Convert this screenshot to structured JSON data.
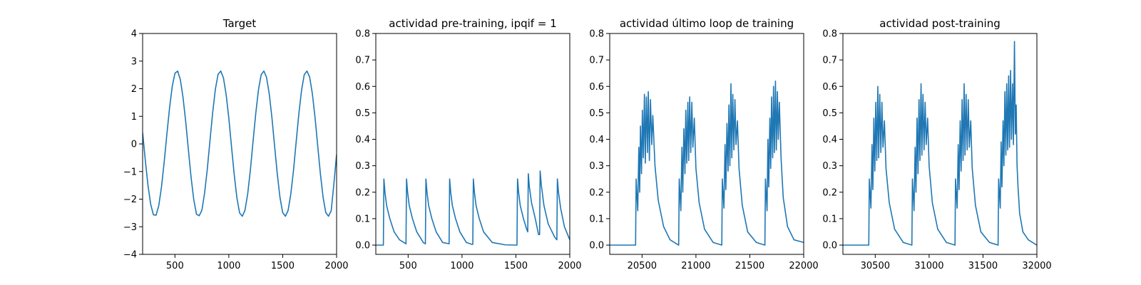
{
  "chart_data": [
    {
      "type": "line",
      "title": "Target",
      "xlabel": "",
      "ylabel": "",
      "xlim": [
        200,
        2000
      ],
      "ylim": [
        -4,
        4
      ],
      "xticks": [
        500,
        1000,
        1500,
        2000
      ],
      "yticks": [
        -4,
        -3,
        -2,
        -1,
        0,
        1,
        2,
        3,
        4
      ],
      "xtick_labels": [
        "500",
        "1000",
        "1500",
        "2000"
      ],
      "ytick_labels": [
        "−4",
        "−3",
        "−2",
        "−1",
        "0",
        "1",
        "2",
        "3",
        "4"
      ],
      "grid": false,
      "series": [
        {
          "x": [
            200,
            225,
            250,
            275,
            300,
            325,
            350,
            375,
            400,
            425,
            450,
            475,
            500,
            525,
            550,
            575,
            600,
            625,
            650,
            675,
            700,
            725,
            750,
            775,
            800,
            825,
            850,
            875,
            900,
            925,
            950,
            975,
            1000,
            1025,
            1050,
            1075,
            1100,
            1125,
            1150,
            1175,
            1200,
            1225,
            1250,
            1275,
            1300,
            1325,
            1350,
            1375,
            1400,
            1425,
            1450,
            1475,
            1500,
            1525,
            1550,
            1575,
            1600,
            1625,
            1650,
            1675,
            1700,
            1725,
            1750,
            1775,
            1800,
            1825,
            1850,
            1875,
            1900,
            1925,
            1950,
            1975,
            2000
          ],
          "y": [
            0.41,
            -0.6,
            -1.51,
            -2.19,
            -2.57,
            -2.58,
            -2.23,
            -1.56,
            -0.66,
            0.35,
            1.31,
            2.09,
            2.56,
            2.64,
            2.33,
            1.68,
            0.8,
            -0.22,
            -1.22,
            -2.03,
            -2.55,
            -2.6,
            -2.4,
            -1.78,
            -0.92,
            0.12,
            1.13,
            1.98,
            2.52,
            2.64,
            2.39,
            1.79,
            0.93,
            -0.11,
            -1.11,
            -1.96,
            -2.5,
            -2.62,
            -2.4,
            -1.81,
            -0.94,
            0.1,
            1.11,
            1.96,
            2.51,
            2.64,
            2.41,
            1.81,
            0.95,
            -0.09,
            -1.1,
            -1.95,
            -2.49,
            -2.62,
            -2.41,
            -1.82,
            -0.96,
            0.08,
            1.1,
            1.95,
            2.51,
            2.64,
            2.42,
            1.82,
            0.96,
            -0.08,
            -1.09,
            -1.94,
            -2.49,
            -2.62,
            -2.42,
            -1.44,
            -0.38
          ]
        }
      ]
    },
    {
      "type": "line",
      "title": "actividad pre-training, ipqif = 1",
      "xlabel": "",
      "ylabel": "",
      "xlim": [
        200,
        2000
      ],
      "ylim": [
        -0.035,
        0.8
      ],
      "xticks": [
        500,
        1000,
        1500,
        2000
      ],
      "yticks": [
        0.0,
        0.1,
        0.2,
        0.3,
        0.4,
        0.5,
        0.6,
        0.7,
        0.8
      ],
      "xtick_labels": [
        "500",
        "1000",
        "1500",
        "2000"
      ],
      "ytick_labels": [
        "0.0",
        "0.1",
        "0.2",
        "0.3",
        "0.4",
        "0.5",
        "0.6",
        "0.7",
        "0.8"
      ],
      "grid": false,
      "series": [
        {
          "x": [
            200,
            270,
            275,
            285,
            300,
            330,
            370,
            420,
            480,
            485,
            495,
            510,
            540,
            580,
            640,
            660,
            665,
            675,
            690,
            720,
            760,
            820,
            880,
            885,
            895,
            910,
            940,
            980,
            1040,
            1090,
            1100,
            1105,
            1115,
            1130,
            1160,
            1200,
            1280,
            1400,
            1510,
            1515,
            1525,
            1540,
            1570,
            1600,
            1610,
            1615,
            1625,
            1645,
            1680,
            1710,
            1720,
            1725,
            1735,
            1760,
            1800,
            1860,
            1880,
            1885,
            1895,
            1915,
            1950,
            2000
          ],
          "y": [
            0.0,
            0.0,
            0.25,
            0.2,
            0.15,
            0.1,
            0.05,
            0.02,
            0.005,
            0.25,
            0.2,
            0.15,
            0.1,
            0.05,
            0.01,
            0.005,
            0.25,
            0.2,
            0.15,
            0.1,
            0.05,
            0.01,
            0.005,
            0.25,
            0.2,
            0.15,
            0.1,
            0.05,
            0.01,
            0.003,
            0.003,
            0.25,
            0.2,
            0.15,
            0.1,
            0.05,
            0.01,
            0.001,
            0.0,
            0.25,
            0.2,
            0.15,
            0.1,
            0.06,
            0.05,
            0.27,
            0.22,
            0.16,
            0.1,
            0.04,
            0.04,
            0.28,
            0.23,
            0.15,
            0.08,
            0.03,
            0.02,
            0.25,
            0.2,
            0.14,
            0.07,
            0.02
          ]
        }
      ]
    },
    {
      "type": "line",
      "title": "actividad último loop de training",
      "xlabel": "",
      "ylabel": "",
      "xlim": [
        20200,
        22000
      ],
      "ylim": [
        -0.035,
        0.8
      ],
      "xticks": [
        20500,
        21000,
        21500,
        22000
      ],
      "yticks": [
        0.0,
        0.1,
        0.2,
        0.3,
        0.4,
        0.5,
        0.6,
        0.7,
        0.8
      ],
      "xtick_labels": [
        "20500",
        "21000",
        "21500",
        "22000"
      ],
      "ytick_labels": [
        "0.0",
        "0.1",
        "0.2",
        "0.3",
        "0.4",
        "0.5",
        "0.6",
        "0.7",
        "0.8"
      ],
      "grid": false,
      "series": [
        {
          "x": [
            20200,
            20440,
            20445,
            20460,
            20470,
            20478,
            20485,
            20495,
            20503,
            20512,
            20522,
            20530,
            20540,
            20550,
            20558,
            20568,
            20578,
            20590,
            20600,
            20620,
            20650,
            20700,
            20760,
            20840,
            20845,
            20860,
            20870,
            20878,
            20888,
            20898,
            20906,
            20915,
            20925,
            20933,
            20942,
            20952,
            20962,
            20972,
            20985,
            21000,
            21030,
            21080,
            21160,
            21240,
            21245,
            21260,
            21270,
            21278,
            21288,
            21298,
            21306,
            21315,
            21325,
            21333,
            21342,
            21352,
            21362,
            21372,
            21385,
            21400,
            21430,
            21480,
            21560,
            21640,
            21645,
            21660,
            21668,
            21676,
            21686,
            21694,
            21702,
            21712,
            21720,
            21728,
            21738,
            21746,
            21756,
            21764,
            21774,
            21790,
            21810,
            21850,
            21910,
            22000
          ],
          "y": [
            0.0,
            0.0,
            0.25,
            0.13,
            0.37,
            0.2,
            0.45,
            0.27,
            0.51,
            0.33,
            0.57,
            0.31,
            0.56,
            0.35,
            0.58,
            0.32,
            0.55,
            0.38,
            0.49,
            0.3,
            0.17,
            0.07,
            0.02,
            0.0,
            0.25,
            0.13,
            0.37,
            0.2,
            0.44,
            0.27,
            0.51,
            0.31,
            0.54,
            0.32,
            0.56,
            0.35,
            0.54,
            0.37,
            0.48,
            0.29,
            0.16,
            0.06,
            0.01,
            0.0,
            0.25,
            0.14,
            0.38,
            0.21,
            0.46,
            0.28,
            0.53,
            0.3,
            0.61,
            0.33,
            0.57,
            0.36,
            0.55,
            0.38,
            0.47,
            0.29,
            0.15,
            0.05,
            0.01,
            0.0,
            0.25,
            0.13,
            0.4,
            0.22,
            0.48,
            0.29,
            0.56,
            0.33,
            0.6,
            0.35,
            0.62,
            0.36,
            0.58,
            0.4,
            0.54,
            0.33,
            0.18,
            0.07,
            0.02,
            0.01
          ]
        }
      ]
    },
    {
      "type": "line",
      "title": "actividad post-training",
      "xlabel": "",
      "ylabel": "",
      "xlim": [
        30200,
        32000
      ],
      "ylim": [
        -0.035,
        0.8
      ],
      "xticks": [
        30500,
        31000,
        31500,
        32000
      ],
      "yticks": [
        0.0,
        0.1,
        0.2,
        0.3,
        0.4,
        0.5,
        0.6,
        0.7,
        0.8
      ],
      "xtick_labels": [
        "30500",
        "31000",
        "31500",
        "32000"
      ],
      "ytick_labels": [
        "0.0",
        "0.1",
        "0.2",
        "0.3",
        "0.4",
        "0.5",
        "0.6",
        "0.7",
        "0.8"
      ],
      "grid": false,
      "series": [
        {
          "x": [
            30200,
            30440,
            30445,
            30460,
            30470,
            30478,
            30487,
            30496,
            30505,
            30514,
            30524,
            30532,
            30542,
            30552,
            30562,
            30572,
            30585,
            30600,
            30630,
            30680,
            30760,
            30840,
            30845,
            30860,
            30870,
            30878,
            30888,
            30897,
            30906,
            30915,
            30925,
            30933,
            30943,
            30953,
            30963,
            30973,
            30986,
            31000,
            31030,
            31080,
            31160,
            31240,
            31245,
            31260,
            31270,
            31278,
            31288,
            31297,
            31306,
            31315,
            31325,
            31333,
            31343,
            31353,
            31363,
            31373,
            31386,
            31400,
            31430,
            31480,
            31560,
            31640,
            31645,
            31660,
            31668,
            31676,
            31686,
            31694,
            31703,
            31712,
            31720,
            31729,
            31738,
            31746,
            31756,
            31764,
            31774,
            31782,
            31792,
            31800,
            31808,
            31816,
            31825,
            31840,
            31870,
            31920,
            32000
          ],
          "y": [
            0.0,
            0.0,
            0.25,
            0.14,
            0.38,
            0.21,
            0.48,
            0.28,
            0.54,
            0.32,
            0.6,
            0.33,
            0.57,
            0.35,
            0.54,
            0.37,
            0.47,
            0.29,
            0.16,
            0.06,
            0.01,
            0.0,
            0.25,
            0.13,
            0.37,
            0.2,
            0.48,
            0.27,
            0.55,
            0.32,
            0.61,
            0.34,
            0.57,
            0.36,
            0.54,
            0.38,
            0.48,
            0.3,
            0.16,
            0.06,
            0.01,
            0.0,
            0.25,
            0.14,
            0.38,
            0.21,
            0.47,
            0.28,
            0.55,
            0.32,
            0.61,
            0.34,
            0.57,
            0.36,
            0.55,
            0.37,
            0.47,
            0.29,
            0.15,
            0.05,
            0.01,
            0.0,
            0.25,
            0.14,
            0.39,
            0.22,
            0.47,
            0.3,
            0.58,
            0.34,
            0.61,
            0.36,
            0.64,
            0.37,
            0.66,
            0.4,
            0.61,
            0.38,
            0.77,
            0.42,
            0.53,
            0.3,
            0.22,
            0.12,
            0.05,
            0.02,
            0.0
          ]
        }
      ]
    }
  ]
}
